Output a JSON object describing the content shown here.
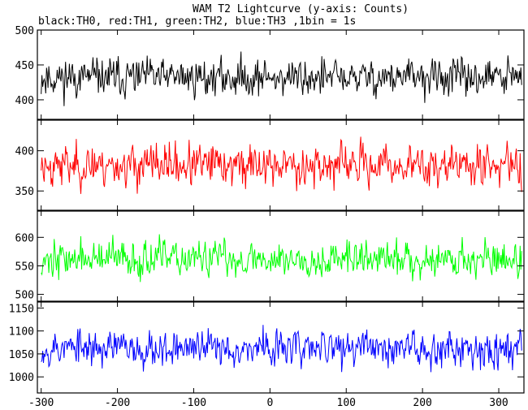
{
  "chart_data": {
    "type": "line",
    "title": "WAM T2 Lightcurve (y-axis: Counts)",
    "subtitle": "black:TH0, red:TH1, green:TH2, blue:TH3 ,1bin = 1s",
    "xlabel": "",
    "x_ticks": [
      -300,
      -200,
      -100,
      0,
      100,
      200,
      300
    ],
    "xlim": [
      -305,
      333
    ],
    "panels": [
      {
        "name": "TH0",
        "color": "#000000",
        "ylim": [
          372,
          500
        ],
        "y_ticks": [
          400,
          450,
          500
        ],
        "mean": 432,
        "spread": 24,
        "seed": 11
      },
      {
        "name": "TH1",
        "color": "#ff0000",
        "ylim": [
          326,
          438
        ],
        "y_ticks": [
          350,
          400
        ],
        "mean": 382,
        "spread": 23,
        "seed": 23
      },
      {
        "name": "TH2",
        "color": "#00ff00",
        "ylim": [
          488,
          646
        ],
        "y_ticks": [
          500,
          550,
          600
        ],
        "mean": 562,
        "spread": 28,
        "seed": 37
      },
      {
        "name": "TH3",
        "color": "#0000ff",
        "ylim": [
          965,
          1163
        ],
        "y_ticks": [
          1000,
          1050,
          1100,
          1150
        ],
        "mean": 1063,
        "spread": 35,
        "seed": 53
      }
    ]
  }
}
